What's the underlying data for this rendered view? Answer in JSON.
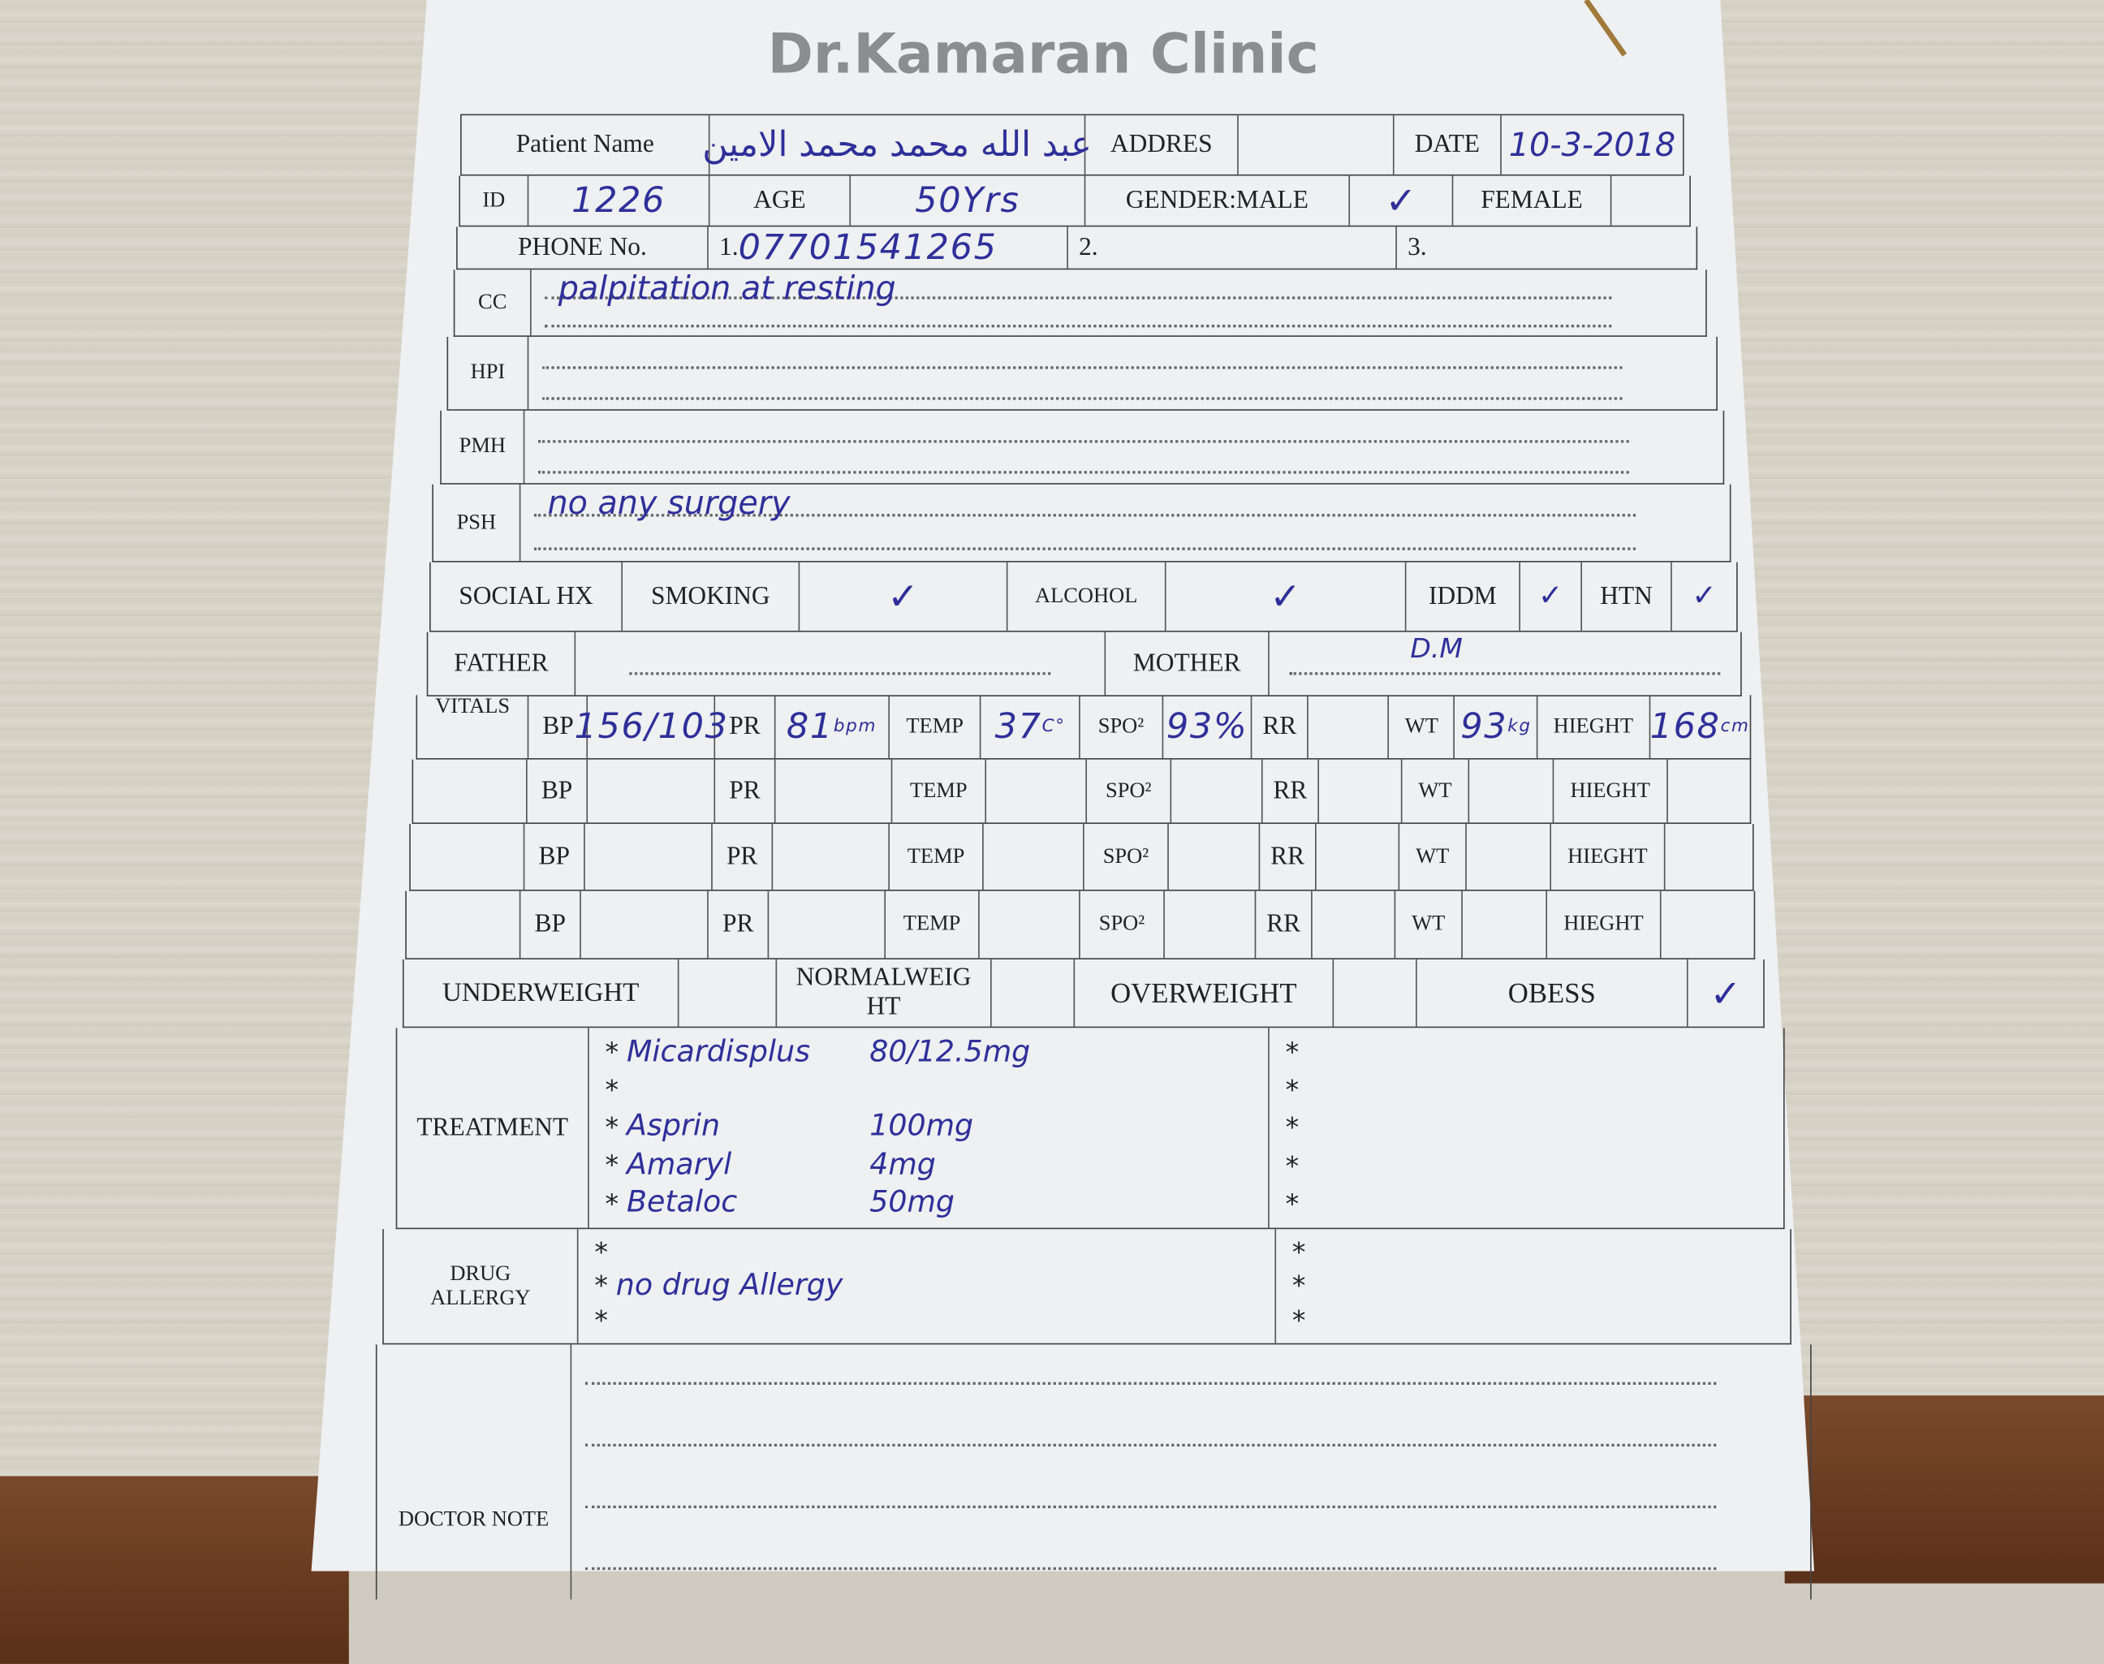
{
  "clinic_title": "Dr.Kamaran Clinic",
  "patient": {
    "name_label": "Patient Name",
    "name": "عبد الله محمد محمد الامين",
    "address_label": "ADDRES",
    "address": "",
    "date_label": "DATE",
    "date": "10-3-2018",
    "id_label": "ID",
    "id": "1226",
    "age_label": "AGE",
    "age": "50Yrs",
    "gender_male_label": "GENDER:MALE",
    "gender_male_mark": "✓",
    "gender_female_label": "FEMALE",
    "phone_label": "PHONE No.",
    "phone1_prefix": "1.",
    "phone1": "07701541265",
    "phone2_prefix": "2.",
    "phone3_prefix": "3."
  },
  "history": {
    "cc_label": "CC",
    "cc": "palpitation at resting",
    "hpi_label": "HPI",
    "pmh_label": "PMH",
    "psh_label": "PSH",
    "psh": "no any surgery"
  },
  "social": {
    "label": "SOCIAL HX",
    "smoking_label": "SMOKING",
    "smoking_mark": "✓",
    "alcohol_label": "ALCOHOL",
    "alcohol_mark": "✓",
    "iddm_label": "IDDM",
    "iddm_mark": "✓",
    "htn_label": "HTN",
    "htn_mark": "✓"
  },
  "family": {
    "father_label": "FATHER",
    "mother_label": "MOTHER",
    "mother": "D.M"
  },
  "vitals": {
    "label": "VITALS",
    "labels": {
      "bp": "BP",
      "pr": "PR",
      "temp": "TEMP",
      "spo2": "SPO²",
      "rr": "RR",
      "wt": "WT",
      "height": "HIEGHT"
    },
    "rows": [
      {
        "bp": "156/103",
        "pr": "81",
        "pr_unit": "bpm",
        "temp": "37",
        "temp_unit": "C°",
        "spo2": "93%",
        "rr": "",
        "wt": "93",
        "wt_unit": "kg",
        "height": "168",
        "height_unit": "cm"
      },
      {
        "bp": "",
        "pr": "",
        "pr_unit": "",
        "temp": "",
        "temp_unit": "",
        "spo2": "",
        "rr": "",
        "wt": "",
        "wt_unit": "",
        "height": "",
        "height_unit": ""
      },
      {
        "bp": "",
        "pr": "",
        "pr_unit": "",
        "temp": "",
        "temp_unit": "",
        "spo2": "",
        "rr": "",
        "wt": "",
        "wt_unit": "",
        "height": "",
        "height_unit": ""
      },
      {
        "bp": "",
        "pr": "",
        "pr_unit": "",
        "temp": "",
        "temp_unit": "",
        "spo2": "",
        "rr": "",
        "wt": "",
        "wt_unit": "",
        "height": "",
        "height_unit": ""
      }
    ]
  },
  "weight_class": {
    "underweight": "UNDERWEIGHT",
    "normal": "NORMALWEIGHT",
    "overweight": "OVERWEIGHT",
    "obese": "OBESS",
    "obese_mark": "✓"
  },
  "treatment": {
    "label": "TREATMENT",
    "items": [
      {
        "drug": "Micardisplus",
        "dose": "80/12.5mg"
      },
      {
        "drug": "",
        "dose": ""
      },
      {
        "drug": "Asprin",
        "dose": "100mg"
      },
      {
        "drug": "Amaryl",
        "dose": "4mg"
      },
      {
        "drug": "Betaloc",
        "dose": "50mg"
      }
    ],
    "bullet": "*"
  },
  "drug_allergy": {
    "label": "DRUG ALLERGY",
    "items": [
      "",
      "no drug Allergy",
      ""
    ]
  },
  "doctor_note": {
    "label": "DOCTOR NOTE"
  }
}
